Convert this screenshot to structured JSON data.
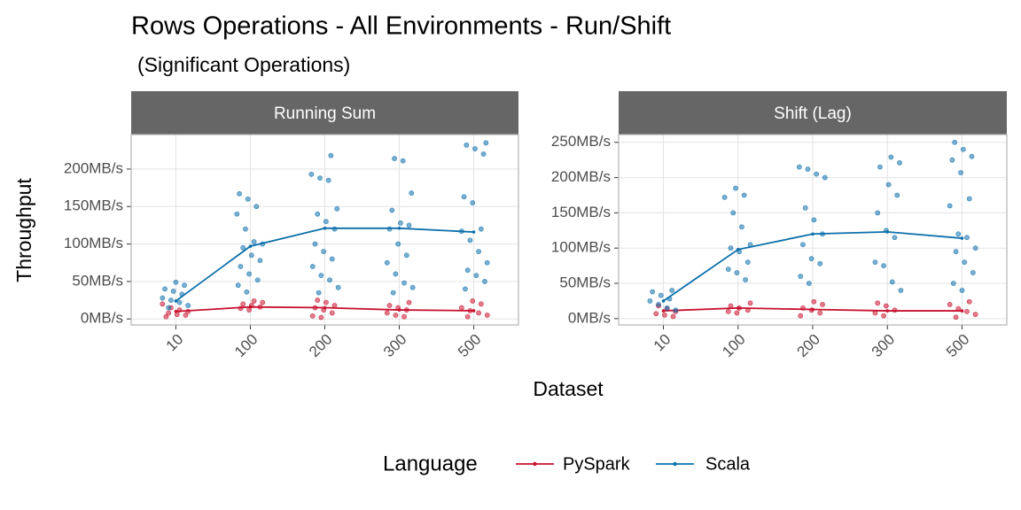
{
  "title": "Rows Operations - All Environments - Run/Shift",
  "subtitle": "(Significant Operations)",
  "xlabel": "Dataset",
  "ylabel": "Throughput",
  "legend_title": "Language",
  "chart_data": [
    {
      "type": "line",
      "title": "Running Sum",
      "categories": [
        "10",
        "100",
        "200",
        "300",
        "500"
      ],
      "ylim": [
        -8,
        246
      ],
      "yticks": [
        {
          "value": 0,
          "label": "0MB/s"
        },
        {
          "value": 50,
          "label": "50MB/s"
        },
        {
          "value": 100,
          "label": "100MB/s"
        },
        {
          "value": 150,
          "label": "150MB/s"
        },
        {
          "value": 200,
          "label": "200MB/s"
        }
      ],
      "grid": true,
      "series": [
        {
          "name": "PySpark",
          "color": "#c8102e",
          "values": [
            10,
            16,
            15,
            12,
            11
          ],
          "points": [
            [
              20,
              15,
              12,
              10,
              8,
              6,
              5,
              3
            ],
            [
              24,
              22,
              20,
              18,
              16,
              14,
              12
            ],
            [
              25,
              22,
              18,
              15,
              12,
              8,
              4,
              2
            ],
            [
              22,
              18,
              15,
              12,
              8,
              5,
              3
            ],
            [
              24,
              20,
              15,
              11,
              8,
              5,
              3
            ]
          ]
        },
        {
          "name": "Scala",
          "color": "#0b6fab",
          "values": [
            24,
            97,
            121,
            121,
            116
          ],
          "points": [
            [
              49,
              45,
              40,
              37,
              33,
              28,
              25,
              22,
              18,
              15
            ],
            [
              167,
              160,
              150,
              140,
              120,
              103,
              100,
              95,
              85,
              78,
              70,
              60,
              52,
              45,
              36
            ],
            [
              218,
              193,
              188,
              185,
              147,
              140,
              130,
              120,
              100,
              90,
              80,
              70,
              58,
              52,
              42,
              35
            ],
            [
              214,
              211,
              168,
              145,
              128,
              125,
              120,
              100,
              85,
              75,
              60,
              48,
              42,
              35
            ],
            [
              235,
              232,
              227,
              220,
              163,
              155,
              120,
              117,
              105,
              90,
              75,
              65,
              58,
              50,
              40
            ]
          ]
        }
      ]
    },
    {
      "type": "line",
      "title": "Shift (Lag)",
      "categories": [
        "10",
        "100",
        "200",
        "300",
        "500"
      ],
      "ylim": [
        -9,
        261
      ],
      "yticks": [
        {
          "value": 0,
          "label": "0MB/s"
        },
        {
          "value": 50,
          "label": "50MB/s"
        },
        {
          "value": 100,
          "label": "100MB/s"
        },
        {
          "value": 150,
          "label": "150MB/s"
        },
        {
          "value": 200,
          "label": "200MB/s"
        },
        {
          "value": 250,
          "label": "250MB/s"
        }
      ],
      "grid": true,
      "series": [
        {
          "color": "#c8102e",
          "values": [
            11,
            15,
            13,
            11,
            11
          ],
          "points": [
            [
              18,
              14,
              10,
              7,
              5,
              3
            ],
            [
              22,
              18,
              15,
              12,
              10,
              8
            ],
            [
              24,
              20,
              15,
              12,
              8,
              4
            ],
            [
              22,
              18,
              12,
              8,
              4
            ],
            [
              24,
              20,
              14,
              10,
              6,
              2
            ]
          ]
        },
        {
          "color": "#0b6fab",
          "values": [
            25,
            98,
            120,
            123,
            114
          ],
          "points": [
            [
              40,
              38,
              33,
              28,
              25,
              20,
              15,
              12
            ],
            [
              185,
              175,
              172,
              150,
              130,
              105,
              100,
              95,
              80,
              70,
              65,
              55
            ],
            [
              215,
              212,
              205,
              200,
              157,
              140,
              120,
              105,
              85,
              78,
              60,
              50
            ],
            [
              229,
              221,
              215,
              190,
              175,
              150,
              125,
              115,
              80,
              75,
              52,
              40
            ],
            [
              250,
              240,
              230,
              225,
              207,
              170,
              160,
              120,
              115,
              100,
              95,
              80,
              65,
              50,
              40
            ]
          ]
        }
      ]
    }
  ]
}
